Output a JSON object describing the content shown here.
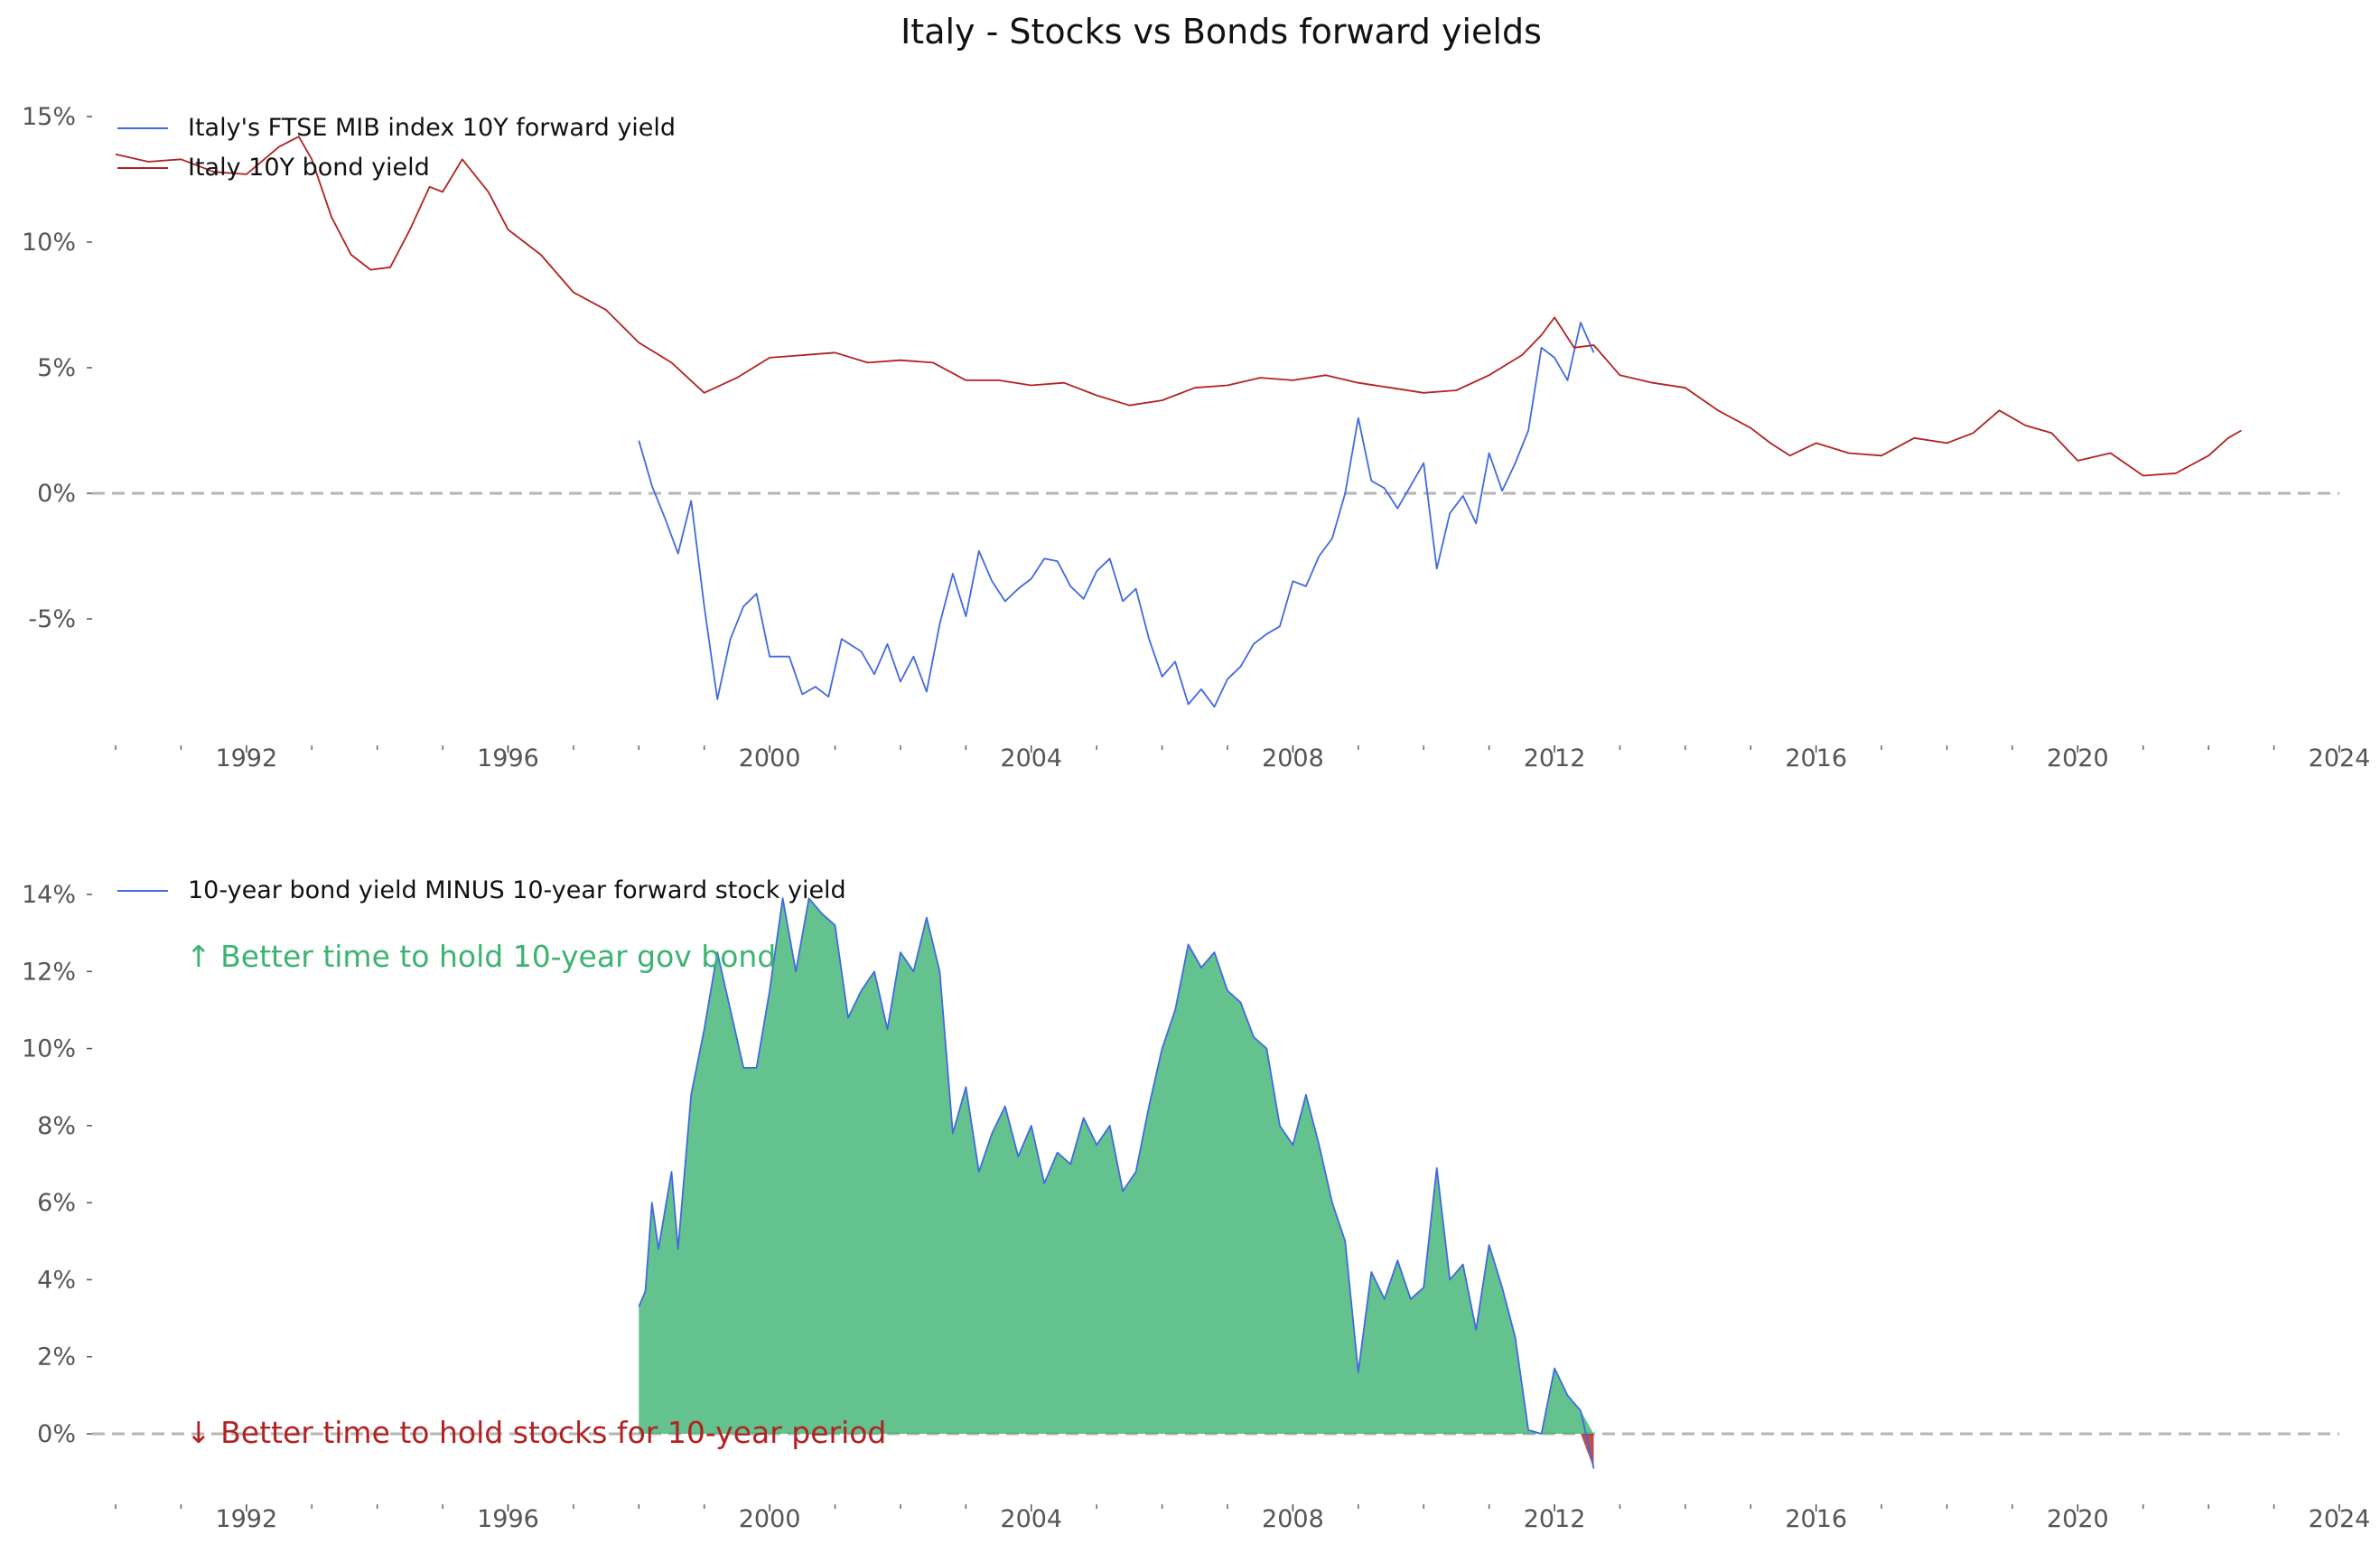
{
  "chart_data": {
    "title": "Italy - Stocks vs Bonds forward yields",
    "panels": [
      {
        "type": "line",
        "xlim": [
          1990.0,
          2024.0
        ],
        "ylim": [
          -9.5,
          16.0
        ],
        "x_ticks": [
          1992,
          1996,
          2000,
          2004,
          2008,
          2012,
          2016,
          2020,
          2024
        ],
        "y_ticks": [
          {
            "value": 15,
            "label": "15%"
          },
          {
            "value": 10,
            "label": "10%"
          },
          {
            "value": 5,
            "label": "5%"
          },
          {
            "value": 0,
            "label": "0%"
          },
          {
            "value": -5,
            "label": "-5%"
          }
        ],
        "zero_line": 0,
        "legend_position": "top-left",
        "series": [
          {
            "name": "Italy's FTSE MIB index 10Y forward yield",
            "color": "#4169e1",
            "x": [
              1998.0,
              1998.2,
              1998.4,
              1998.6,
              1998.8,
              1999.0,
              1999.2,
              1999.4,
              1999.6,
              1999.8,
              2000.0,
              2000.3,
              2000.5,
              2000.7,
              2000.9,
              2001.1,
              2001.4,
              2001.6,
              2001.8,
              2002.0,
              2002.2,
              2002.4,
              2002.6,
              2002.8,
              2003.0,
              2003.2,
              2003.4,
              2003.6,
              2003.8,
              2004.0,
              2004.2,
              2004.4,
              2004.6,
              2004.8,
              2005.0,
              2005.2,
              2005.4,
              2005.6,
              2005.8,
              2006.0,
              2006.2,
              2006.4,
              2006.6,
              2006.8,
              2007.0,
              2007.2,
              2007.4,
              2007.6,
              2007.8,
              2008.0,
              2008.2,
              2008.4,
              2008.6,
              2008.8,
              2009.0,
              2009.2,
              2009.4,
              2009.6,
              2009.8,
              2010.0,
              2010.2,
              2010.4,
              2010.6,
              2010.8,
              2011.0,
              2011.2,
              2011.4,
              2011.6,
              2011.8,
              2012.0,
              2012.2,
              2012.4,
              2012.6
            ],
            "values": [
              2.1,
              0.3,
              -1.0,
              -2.4,
              -0.3,
              -4.5,
              -8.2,
              -5.8,
              -4.5,
              -4.0,
              -6.5,
              -6.5,
              -8.0,
              -7.7,
              -8.1,
              -5.8,
              -6.3,
              -7.2,
              -6.0,
              -7.5,
              -6.5,
              -7.9,
              -5.2,
              -3.2,
              -4.9,
              -2.3,
              -3.5,
              -4.3,
              -3.8,
              -3.4,
              -2.6,
              -2.7,
              -3.7,
              -4.2,
              -3.1,
              -2.6,
              -4.3,
              -3.8,
              -5.8,
              -7.3,
              -6.7,
              -8.4,
              -7.8,
              -8.5,
              -7.4,
              -6.9,
              -6.0,
              -5.6,
              -5.3,
              -3.5,
              -3.7,
              -2.5,
              -1.8,
              0.0,
              3.0,
              0.5,
              0.2,
              -0.6,
              0.3,
              1.2,
              -3.0,
              -0.8,
              -0.1,
              -1.2,
              1.6,
              0.1,
              1.2,
              2.5,
              5.8,
              5.4,
              4.5,
              6.8,
              5.6
            ]
          },
          {
            "name": "Italy 10Y bond yield",
            "color": "#b22222",
            "x": [
              1990.0,
              1990.5,
              1991.0,
              1991.5,
              1992.0,
              1992.5,
              1992.8,
              1993.0,
              1993.3,
              1993.6,
              1993.9,
              1994.2,
              1994.5,
              1994.8,
              1995.0,
              1995.3,
              1995.7,
              1996.0,
              1996.5,
              1997.0,
              1997.5,
              1998.0,
              1998.5,
              1999.0,
              1999.5,
              2000.0,
              2000.5,
              2001.0,
              2001.5,
              2002.0,
              2002.5,
              2003.0,
              2003.5,
              2004.0,
              2004.5,
              2005.0,
              2005.5,
              2006.0,
              2006.5,
              2007.0,
              2007.5,
              2008.0,
              2008.5,
              2009.0,
              2009.5,
              2010.0,
              2010.5,
              2011.0,
              2011.5,
              2011.8,
              2012.0,
              2012.3,
              2012.6,
              2013.0,
              2013.5,
              2014.0,
              2014.5,
              2015.0,
              2015.3,
              2015.6,
              2016.0,
              2016.5,
              2017.0,
              2017.5,
              2018.0,
              2018.4,
              2018.8,
              2019.2,
              2019.6,
              2020.0,
              2020.5,
              2021.0,
              2021.5,
              2022.0,
              2022.3,
              2022.5
            ],
            "values": [
              13.5,
              13.2,
              13.3,
              12.8,
              12.7,
              13.8,
              14.2,
              13.3,
              11.0,
              9.5,
              8.9,
              9.0,
              10.5,
              12.2,
              12.0,
              13.3,
              12.0,
              10.5,
              9.5,
              8.0,
              7.3,
              6.0,
              5.2,
              4.0,
              4.6,
              5.4,
              5.5,
              5.6,
              5.2,
              5.3,
              5.2,
              4.5,
              4.5,
              4.3,
              4.4,
              3.9,
              3.5,
              3.7,
              4.2,
              4.3,
              4.6,
              4.5,
              4.7,
              4.4,
              4.2,
              4.0,
              4.1,
              4.7,
              5.5,
              6.3,
              7.0,
              5.8,
              5.9,
              4.7,
              4.4,
              4.2,
              3.3,
              2.6,
              2.0,
              1.5,
              2.0,
              1.6,
              1.5,
              2.2,
              2.0,
              2.4,
              3.3,
              2.7,
              2.4,
              1.3,
              1.6,
              0.7,
              0.8,
              1.5,
              2.2,
              2.5
            ]
          }
        ]
      },
      {
        "type": "area",
        "xlim": [
          1990.0,
          2024.0
        ],
        "ylim": [
          -2.0,
          14.5
        ],
        "x_ticks": [
          1992,
          1996,
          2000,
          2004,
          2008,
          2012,
          2016,
          2020,
          2024
        ],
        "y_ticks": [
          {
            "value": 14,
            "label": "14%"
          },
          {
            "value": 12,
            "label": "12%"
          },
          {
            "value": 10,
            "label": "10%"
          },
          {
            "value": 8,
            "label": "8%"
          },
          {
            "value": 6,
            "label": "6%"
          },
          {
            "value": 4,
            "label": "4%"
          },
          {
            "value": 2,
            "label": "2%"
          },
          {
            "value": 0,
            "label": "0%"
          }
        ],
        "zero_line": 0,
        "legend_position": "top-left",
        "fill_positive_color": "#3cb371",
        "fill_negative_color": "#b22222",
        "series": [
          {
            "name": "10-year bond yield MINUS 10-year forward stock yield",
            "color": "#4169e1",
            "x": [
              1998.0,
              1998.1,
              1998.2,
              1998.3,
              1998.5,
              1998.6,
              1998.8,
              1999.0,
              1999.2,
              1999.4,
              1999.6,
              1999.8,
              2000.0,
              2000.2,
              2000.4,
              2000.6,
              2000.8,
              2001.0,
              2001.2,
              2001.4,
              2001.6,
              2001.8,
              2002.0,
              2002.2,
              2002.4,
              2002.6,
              2002.8,
              2003.0,
              2003.2,
              2003.4,
              2003.6,
              2003.8,
              2004.0,
              2004.2,
              2004.4,
              2004.6,
              2004.8,
              2005.0,
              2005.2,
              2005.4,
              2005.6,
              2005.8,
              2006.0,
              2006.2,
              2006.4,
              2006.6,
              2006.8,
              2007.0,
              2007.2,
              2007.4,
              2007.6,
              2007.8,
              2008.0,
              2008.2,
              2008.4,
              2008.6,
              2008.8,
              2009.0,
              2009.2,
              2009.4,
              2009.6,
              2009.8,
              2010.0,
              2010.2,
              2010.4,
              2010.6,
              2010.8,
              2011.0,
              2011.2,
              2011.4,
              2011.6,
              2011.8,
              2012.0,
              2012.2,
              2012.4,
              2012.6
            ],
            "values": [
              3.3,
              3.7,
              6.0,
              4.8,
              6.8,
              4.8,
              8.8,
              10.5,
              12.5,
              11.0,
              9.5,
              9.5,
              11.5,
              13.9,
              12.0,
              13.9,
              13.5,
              13.2,
              10.8,
              11.5,
              12.0,
              10.5,
              12.5,
              12.0,
              13.4,
              12.0,
              7.8,
              9.0,
              6.8,
              7.8,
              8.5,
              7.2,
              8.0,
              6.5,
              7.3,
              7.0,
              8.2,
              7.5,
              8.0,
              6.3,
              6.8,
              8.5,
              10.0,
              11.0,
              12.7,
              12.1,
              12.5,
              11.5,
              11.2,
              10.3,
              10.0,
              8.0,
              7.5,
              8.8,
              7.5,
              6.0,
              5.0,
              1.6,
              4.2,
              3.5,
              4.5,
              3.5,
              3.8,
              6.9,
              4.0,
              4.4,
              2.7,
              4.9,
              3.8,
              2.5,
              0.1,
              0.0,
              1.7,
              1.0,
              0.6,
              -0.9
            ]
          }
        ],
        "annotations": [
          {
            "text": "↑ Better time to hold 10-year gov bond",
            "color": "#3cb371",
            "position": "upper-left"
          },
          {
            "text": "↓ Better time to hold stocks for 10-year period",
            "color": "#b22222",
            "position": "lower-left"
          }
        ]
      }
    ]
  }
}
